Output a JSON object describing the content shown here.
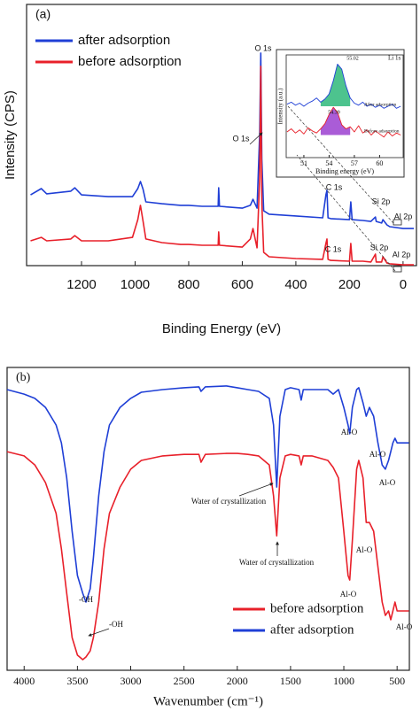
{
  "chart_data": [
    {
      "type": "line",
      "label": "(a)",
      "xlabel": "Binding Energy (eV)",
      "ylabel": "Intensity (CPS)",
      "x": [
        1390,
        1350,
        1330,
        1240,
        1225,
        1200,
        1100,
        1010,
        990,
        980,
        970,
        960,
        900,
        830,
        800,
        750,
        690,
        688,
        685,
        600,
        570,
        560,
        545,
        535,
        531,
        527,
        520,
        500,
        400,
        300,
        288,
        284,
        280,
        270,
        200,
        195,
        190,
        150,
        120,
        103,
        100,
        80,
        75,
        60,
        50,
        0,
        -40
      ],
      "xlim": [
        1405,
        -50
      ],
      "xticks": [
        1200,
        1000,
        800,
        600,
        400,
        200,
        0
      ],
      "ylim": [
        0,
        100
      ],
      "legend": "upper left",
      "series": [
        {
          "name": "after adsorption",
          "color": "#1f3fd6",
          "values": [
            27.1,
            29.5,
            27.5,
            28.5,
            29.8,
            27.1,
            26.4,
            26.4,
            29.5,
            32.2,
            29.2,
            24.4,
            23.7,
            23.1,
            23.1,
            22.7,
            22.7,
            29.8,
            22.7,
            22.0,
            23.1,
            25.4,
            22.0,
            50.8,
            81.4,
            40.7,
            21.0,
            19.7,
            19.0,
            18.3,
            27.1,
            28.8,
            18.3,
            18.0,
            17.6,
            24.4,
            17.6,
            17.3,
            16.9,
            18.6,
            16.9,
            16.3,
            17.6,
            15.6,
            14.9,
            14.2,
            14.2
          ]
        },
        {
          "name": "before adsorption",
          "color": "#e8202a",
          "values": [
            9.5,
            10.8,
            9.5,
            10.2,
            11.5,
            9.5,
            9.5,
            10.8,
            17.6,
            23.1,
            16.9,
            10.2,
            8.8,
            8.1,
            8.1,
            7.8,
            7.8,
            12.9,
            7.8,
            7.1,
            10.2,
            14.2,
            6.8,
            33.9,
            76.3,
            23.7,
            5.1,
            3.4,
            2.7,
            2.4,
            8.5,
            10.2,
            2.4,
            2.0,
            1.7,
            8.5,
            1.7,
            1.7,
            1.4,
            4.4,
            1.4,
            1.4,
            3.4,
            1.0,
            0.7,
            0.3,
            0.3
          ]
        }
      ],
      "annotations": [
        "O 1s",
        "O 1s",
        "C 1s",
        "C 1s",
        "Si 2p",
        "Si 2p",
        "Al 2p",
        "Al 2p"
      ]
    },
    {
      "type": "line",
      "title": "Li 1s",
      "xlabel": "Binding energy (eV)",
      "ylabel": "Intensity (a.u.)",
      "x": [
        49,
        49.5,
        50,
        50.5,
        51,
        51.5,
        52,
        52.5,
        53,
        53.5,
        54,
        54.5,
        55,
        55.5,
        56,
        56.5,
        57,
        57.5,
        58,
        58.5,
        59,
        59.5,
        60,
        60.5,
        61,
        61.5,
        62,
        62.5
      ],
      "xlim": [
        48.9,
        62.8
      ],
      "xticks": [
        51,
        54,
        57,
        60
      ],
      "ylim": [
        0,
        100
      ],
      "series": [
        {
          "name": "After adsorption",
          "color": "#1f3fd6",
          "fill": "#2eb87a",
          "values": [
            52,
            54,
            51,
            53,
            50,
            53,
            55,
            58,
            54,
            57,
            62,
            75,
            91,
            86,
            70,
            58,
            53,
            51,
            54,
            50,
            52,
            49,
            51,
            48,
            50,
            52,
            48,
            50
          ]
        },
        {
          "name": "Before adsorption",
          "color": "#e8202a",
          "fill": "#9b3fd0",
          "values": [
            25,
            28,
            24,
            27,
            23,
            29,
            26,
            24,
            28,
            33,
            42,
            49,
            44,
            32,
            28,
            30,
            25,
            31,
            24,
            27,
            22,
            26,
            23,
            20,
            25,
            21,
            24,
            22
          ]
        }
      ],
      "annotations": [
        "55.02",
        "54.39"
      ]
    },
    {
      "type": "line",
      "label": "(b)",
      "xlabel": "Wavenumber (cm⁻¹)",
      "x": [
        4160,
        4000,
        3900,
        3800,
        3700,
        3650,
        3600,
        3550,
        3500,
        3450,
        3420,
        3380,
        3350,
        3300,
        3250,
        3200,
        3100,
        3000,
        2900,
        2700,
        2500,
        2360,
        2340,
        2300,
        2100,
        2000,
        1900,
        1800,
        1700,
        1660,
        1630,
        1600,
        1550,
        1500,
        1420,
        1400,
        1380,
        1300,
        1150,
        1100,
        1050,
        1000,
        960,
        945,
        920,
        880,
        860,
        820,
        790,
        760,
        720,
        680,
        640,
        610,
        580,
        560,
        540,
        520,
        500,
        390
      ],
      "xlim": [
        4160,
        385
      ],
      "xticks": [
        4000,
        3500,
        3000,
        2500,
        2000,
        1500,
        1000,
        500
      ],
      "ylim": [
        0,
        100
      ],
      "legend": "lower right",
      "series": [
        {
          "name": "before adsorption",
          "color": "#e8202a",
          "values": [
            72.2,
            70.8,
            67.8,
            62.0,
            51.8,
            40.1,
            25.4,
            10.8,
            5.0,
            3.5,
            4.4,
            6.4,
            10.8,
            22.5,
            40.1,
            51.8,
            60.5,
            66.4,
            69.3,
            70.8,
            71.3,
            71.3,
            68.7,
            71.3,
            71.6,
            71.6,
            71.3,
            70.8,
            67.8,
            57.6,
            44.4,
            63.5,
            70.8,
            71.3,
            70.8,
            67.8,
            70.8,
            70.8,
            69.3,
            67.0,
            63.5,
            45.9,
            31.3,
            29.8,
            43.0,
            66.4,
            69.3,
            63.5,
            48.8,
            48.8,
            45.9,
            34.2,
            22.5,
            18.1,
            19.6,
            16.7,
            19.6,
            22.5,
            19.6,
            19.6
          ]
        },
        {
          "name": "after adsorption",
          "color": "#1f3fd6",
          "values": [
            92.7,
            91.2,
            89.8,
            86.8,
            81.0,
            75.1,
            63.5,
            45.9,
            31.3,
            25.4,
            22.5,
            26.9,
            37.1,
            57.6,
            72.2,
            81.0,
            86.8,
            89.8,
            91.8,
            92.7,
            93.3,
            93.6,
            92.1,
            93.6,
            93.9,
            93.3,
            92.7,
            92.1,
            89.8,
            81.0,
            60.5,
            83.9,
            92.7,
            93.3,
            92.7,
            89.2,
            92.7,
            92.7,
            92.7,
            91.2,
            92.7,
            86.8,
            81.0,
            78.1,
            86.8,
            92.7,
            93.3,
            88.3,
            83.9,
            86.8,
            83.9,
            75.1,
            67.8,
            66.4,
            69.3,
            72.2,
            75.1,
            76.6,
            75.1,
            75.1
          ]
        }
      ],
      "annotations": [
        "Water of crystallization",
        "Water of crystallization",
        "Al-O",
        "Al-O",
        "Al-O",
        "Al-O",
        "Al-O",
        "Al-O",
        "-OH",
        "-OH"
      ]
    }
  ]
}
